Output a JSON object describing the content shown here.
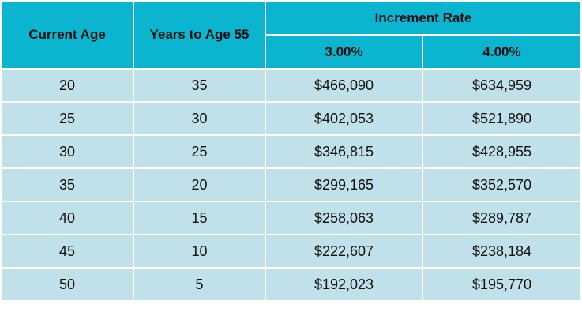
{
  "table": {
    "headers": {
      "current_age": "Current Age",
      "years_to_55": "Years to Age 55",
      "increment_rate": "Increment Rate",
      "rate_a": "3.00%",
      "rate_b": "4.00%"
    },
    "rows": [
      [
        "20",
        "35",
        "$466,090",
        "$634,959"
      ],
      [
        "25",
        "30",
        "$402,053",
        "$521,890"
      ],
      [
        "30",
        "25",
        "$346,815",
        "$428,955"
      ],
      [
        "35",
        "20",
        "$299,165",
        "$352,570"
      ],
      [
        "40",
        "15",
        "$258,063",
        "$289,787"
      ],
      [
        "45",
        "10",
        "$222,607",
        "$238,184"
      ],
      [
        "50",
        "5",
        "$192,023",
        "$195,770"
      ]
    ]
  },
  "colors": {
    "header_bg": "#0bb5cf",
    "row_bg": "#c0e0ea",
    "border": "#ffffff"
  }
}
